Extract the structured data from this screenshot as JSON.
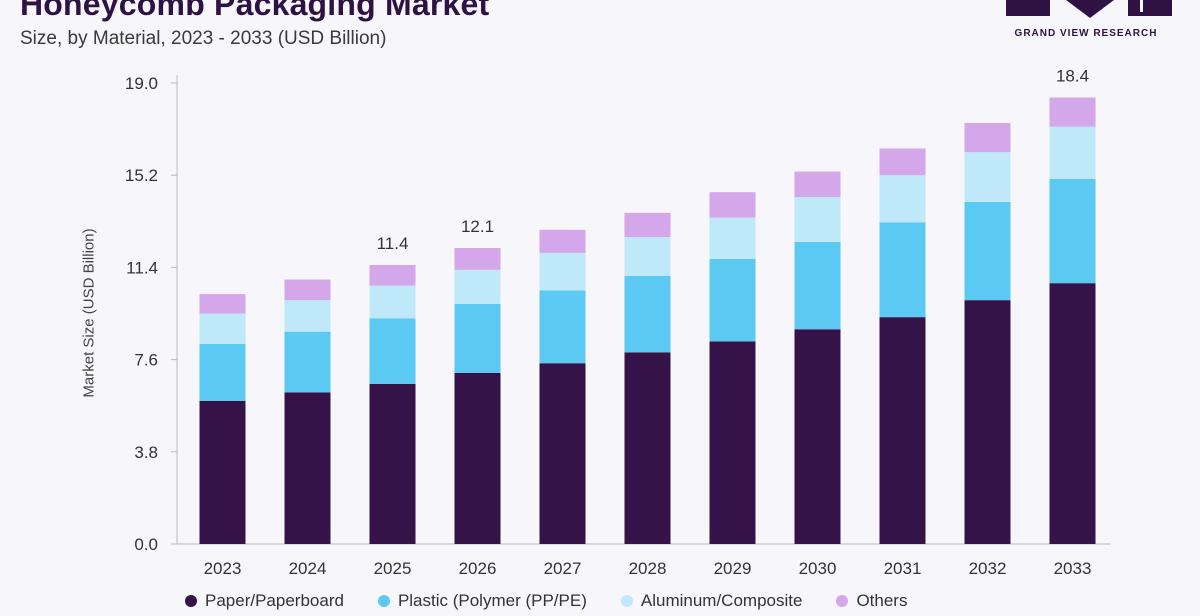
{
  "header": {
    "title": "Honeycomb Packaging Market",
    "subtitle": "Size, by Material, 2023 - 2033 (USD Billion)"
  },
  "logo": {
    "text": "GRAND VIEW RESEARCH"
  },
  "chart_data": {
    "type": "bar",
    "stacked": true,
    "title": "Honeycomb Packaging Market",
    "subtitle": "Size, by Material, 2023 - 2033 (USD Billion)",
    "xlabel": "",
    "ylabel": "Market Size (USD Billion)",
    "ylim": [
      0,
      19.0
    ],
    "yticks": [
      "0.0",
      "3.8",
      "7.6",
      "11.4",
      "15.2",
      "19.0"
    ],
    "categories": [
      "2023",
      "2024",
      "2025",
      "2026",
      "2027",
      "2028",
      "2029",
      "2030",
      "2031",
      "2032",
      "2033"
    ],
    "series": [
      {
        "name": "Paper/Paperboard",
        "color": "#351349",
        "values": [
          5.9,
          6.25,
          6.6,
          7.05,
          7.45,
          7.9,
          8.35,
          8.85,
          9.35,
          10.05,
          10.75
        ]
      },
      {
        "name": "Plastic (Polymer (PP/PE)",
        "color": "#5bc9f1",
        "values": [
          2.35,
          2.5,
          2.7,
          2.85,
          3.0,
          3.15,
          3.4,
          3.6,
          3.9,
          4.05,
          4.3
        ]
      },
      {
        "name": "Aluminum/Composite",
        "color": "#bfe9f8",
        "values": [
          1.25,
          1.3,
          1.35,
          1.4,
          1.55,
          1.6,
          1.7,
          1.85,
          1.95,
          2.05,
          2.15
        ]
      },
      {
        "name": "Others",
        "color": "#d4a6ea",
        "values": [
          0.8,
          0.85,
          0.85,
          0.9,
          0.95,
          1.0,
          1.05,
          1.05,
          1.1,
          1.2,
          1.2
        ]
      }
    ],
    "totals_shown": [
      {
        "category": "2025",
        "label": "11.4"
      },
      {
        "category": "2026",
        "label": "12.1"
      },
      {
        "category": "2033",
        "label": "18.4"
      }
    ],
    "legend": {
      "position": "bottom"
    },
    "grid": false
  }
}
